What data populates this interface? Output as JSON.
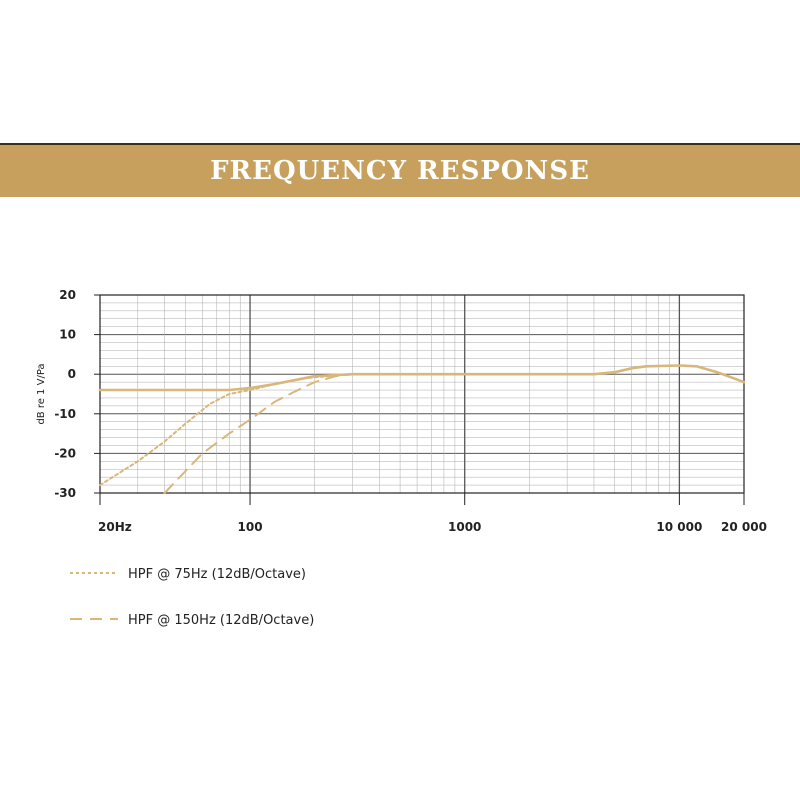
{
  "header": {
    "title": "FREQUENCY RESPONSE"
  },
  "colors": {
    "banner": "#c6a05c",
    "curve": "#d9b67a",
    "grid_major": "#555555",
    "grid_minor": "#aaaaaa"
  },
  "chart_data": {
    "type": "line",
    "title": "FREQUENCY RESPONSE",
    "xlabel": "",
    "ylabel": "dB re 1 V/Pa",
    "x_scale": "log",
    "xlim": [
      20,
      20000
    ],
    "ylim": [
      -30,
      20
    ],
    "x_ticks": [
      20,
      100,
      1000,
      10000,
      20000
    ],
    "x_tick_labels": [
      "20Hz",
      "100",
      "1000",
      "10 000",
      "20 000"
    ],
    "y_ticks": [
      20,
      10,
      0,
      -10,
      -20,
      -30
    ],
    "y_tick_labels": [
      "20",
      "10",
      "0",
      "-10",
      "-20",
      "-30"
    ],
    "grid": true,
    "legend_position": "bottom-left",
    "series": [
      {
        "name": "",
        "style": "solid",
        "x": [
          20,
          50,
          80,
          100,
          130,
          200,
          300,
          500,
          1000,
          2000,
          4000,
          5000,
          6000,
          7000,
          10000,
          12000,
          15000,
          20000
        ],
        "y": [
          -4,
          -4,
          -4,
          -3.5,
          -2.5,
          -0.5,
          0,
          0,
          0,
          0,
          0,
          0.5,
          1.5,
          2,
          2.2,
          2,
          0.5,
          -2
        ]
      },
      {
        "name": "HPF @ 75Hz (12dB/Octave)",
        "style": "dotted",
        "x": [
          20,
          30,
          40,
          50,
          65,
          80,
          100,
          130,
          180,
          250,
          300
        ],
        "y": [
          -28,
          -22,
          -17,
          -12.5,
          -7.5,
          -5,
          -4,
          -2.5,
          -1,
          -0.3,
          0
        ]
      },
      {
        "name": "HPF @ 150Hz (12dB/Octave)",
        "style": "dashed",
        "x": [
          40,
          60,
          80,
          100,
          130,
          160,
          200,
          250,
          300
        ],
        "y": [
          -30,
          -20,
          -15,
          -11.5,
          -7,
          -4.5,
          -2,
          -0.5,
          0
        ]
      }
    ]
  }
}
